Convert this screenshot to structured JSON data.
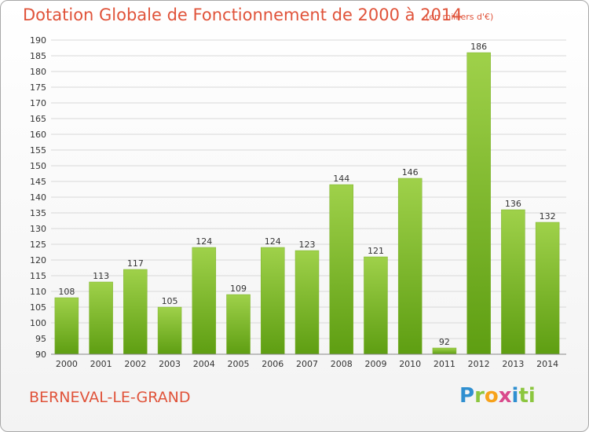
{
  "header": {
    "title": "Dotation Globale de Fonctionnement de 2000 à 2014",
    "unit": "(en milliers d'€)"
  },
  "footer": {
    "place": "BERNEVAL-LE-GRAND",
    "logo": [
      "P",
      "r",
      "o",
      "x",
      "i",
      "t",
      "i"
    ]
  },
  "colors": {
    "accent": "#e0533a",
    "bar_top": "#9fd14a",
    "bar_bottom": "#5e9e12",
    "grid": "#d8d8d8"
  },
  "chart_data": {
    "type": "bar",
    "title": "Dotation Globale de Fonctionnement de 2000 à 2014",
    "xlabel": "",
    "ylabel": "",
    "ylim": [
      90,
      190
    ],
    "ytick_step": 5,
    "grid": true,
    "categories": [
      "2000",
      "2001",
      "2002",
      "2003",
      "2004",
      "2005",
      "2006",
      "2007",
      "2008",
      "2009",
      "2010",
      "2011",
      "2012",
      "2013",
      "2014"
    ],
    "values": [
      108,
      113,
      117,
      105,
      124,
      109,
      124,
      123,
      144,
      121,
      146,
      92,
      186,
      136,
      132
    ]
  }
}
